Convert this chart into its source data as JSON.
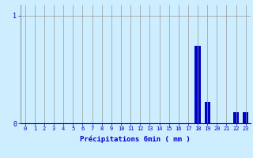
{
  "hours": [
    0,
    1,
    2,
    3,
    4,
    5,
    6,
    7,
    8,
    9,
    10,
    11,
    12,
    13,
    14,
    15,
    16,
    17,
    18,
    19,
    20,
    21,
    22,
    23
  ],
  "values": [
    0,
    0,
    0,
    0,
    0,
    0,
    0,
    0,
    0,
    0,
    0,
    0,
    0,
    0,
    0,
    0,
    0,
    0,
    0.72,
    0.2,
    0,
    0,
    0.1,
    0.1
  ],
  "bar_color": "#0000cc",
  "background_color": "#cceeff",
  "grid_color": "#999999",
  "xlabel": "Précipitations 6min ( mm )",
  "xlabel_color": "#0000cc",
  "ytick_color": "#0000cc",
  "xtick_color": "#0000cc",
  "ylim": [
    0,
    1.1
  ],
  "xlim": [
    -0.5,
    23.5
  ],
  "figsize": [
    3.2,
    2.0
  ],
  "dpi": 100
}
